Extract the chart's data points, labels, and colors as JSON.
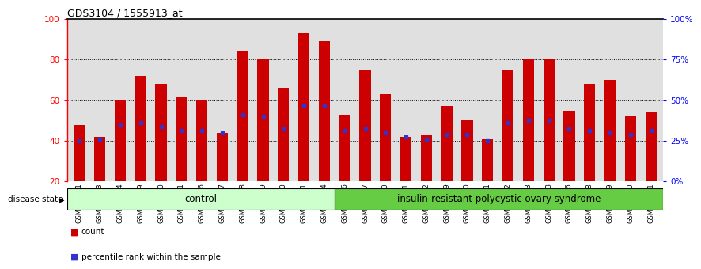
{
  "title": "GDS3104 / 1555913_at",
  "categories": [
    "GSM155631",
    "GSM155643",
    "GSM155644",
    "GSM155729",
    "GSM156170",
    "GSM156171",
    "GSM156176",
    "GSM156177",
    "GSM156178",
    "GSM156179",
    "GSM156180",
    "GSM156181",
    "GSM156184",
    "GSM156186",
    "GSM156187",
    "GSM156510",
    "GSM156511",
    "GSM156512",
    "GSM156749",
    "GSM156750",
    "GSM156751",
    "GSM156752",
    "GSM156753",
    "GSM156763",
    "GSM156946",
    "GSM156948",
    "GSM156949",
    "GSM156950",
    "GSM156951"
  ],
  "bar_values": [
    48,
    42,
    60,
    72,
    68,
    62,
    60,
    44,
    84,
    80,
    66,
    93,
    89,
    53,
    75,
    63,
    42,
    43,
    57,
    50,
    41,
    75,
    80,
    80,
    55,
    68,
    70,
    52,
    54
  ],
  "percentile_values": [
    40,
    41,
    48,
    49,
    47,
    45,
    45,
    44,
    53,
    52,
    46,
    57,
    57,
    45,
    46,
    44,
    42,
    41,
    43,
    43,
    40,
    49,
    50,
    50,
    46,
    45,
    44,
    43,
    45
  ],
  "control_count": 13,
  "disease_count": 16,
  "control_label": "control",
  "disease_label": "insulin-resistant polycystic ovary syndrome",
  "disease_state_label": "disease state",
  "bar_color": "#cc0000",
  "percentile_color": "#3333cc",
  "control_bg": "#ccffcc",
  "disease_bg": "#66cc44",
  "ylim_left": [
    20,
    100
  ],
  "yticks_left": [
    20,
    40,
    60,
    80,
    100
  ],
  "yticks_right": [
    0,
    25,
    50,
    75,
    100
  ],
  "ytick_labels_right": [
    "0%",
    "25%",
    "50%",
    "75%",
    "100%"
  ],
  "grid_values": [
    40,
    60,
    80
  ],
  "legend_count_label": "count",
  "legend_percentile_label": "percentile rank within the sample",
  "bg_color": "#e0e0e0",
  "bar_width": 0.55
}
